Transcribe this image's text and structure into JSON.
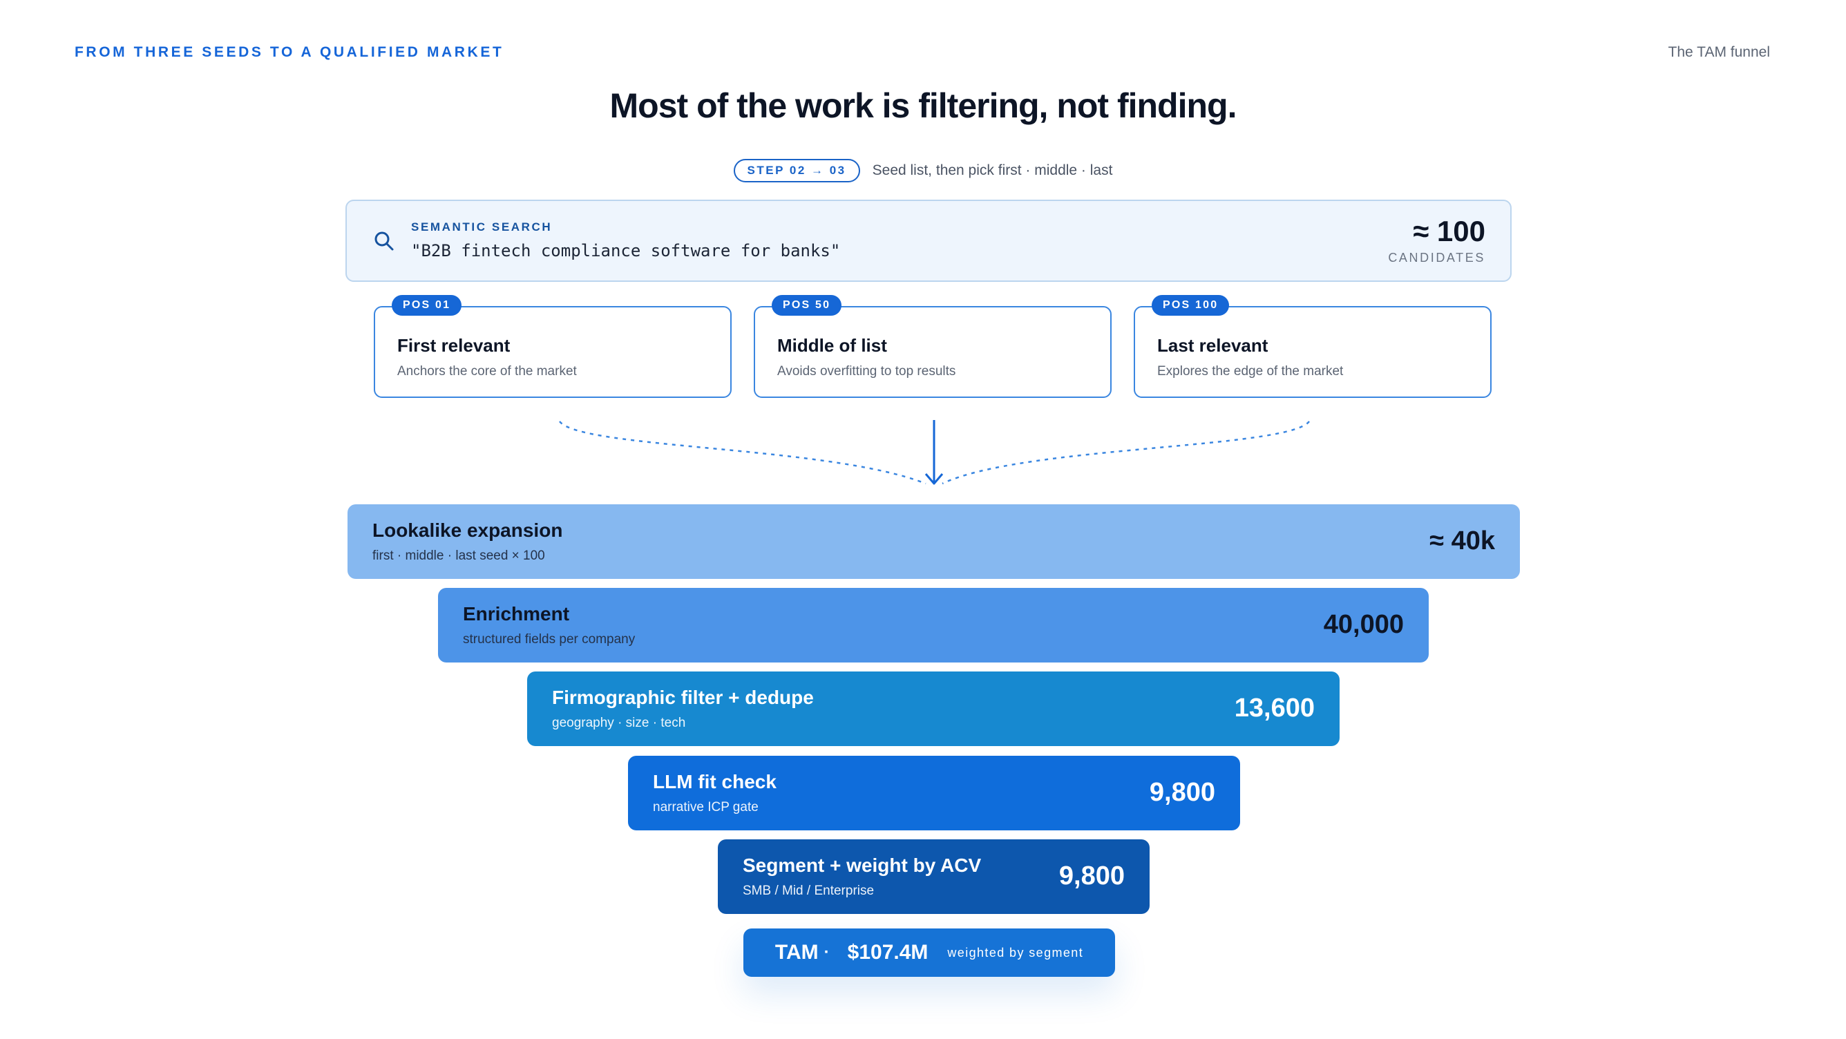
{
  "eyebrow": "FROM THREE SEEDS TO A QUALIFIED MARKET",
  "corner_label": "The TAM funnel",
  "headline": "Most of the work is filtering, not finding.",
  "step": {
    "pill": "STEP 02 → 03",
    "text": "Seed list, then pick first · middle · last"
  },
  "search": {
    "icon": "search-icon",
    "label": "SEMANTIC SEARCH",
    "query": "\"B2B fintech compliance software for banks\"",
    "count": "≈ 100",
    "count_label": "CANDIDATES"
  },
  "seeds": [
    {
      "badge": "POS 01",
      "title": "First relevant",
      "desc": "Anchors the core of the market"
    },
    {
      "badge": "POS 50",
      "title": "Middle of list",
      "desc": "Avoids overfitting to top results"
    },
    {
      "badge": "POS 100",
      "title": "Last relevant",
      "desc": "Explores the edge of the market"
    }
  ],
  "stages": [
    {
      "title": "Lookalike expansion",
      "sub": "first · middle · last seed × 100",
      "value": "≈ 40k",
      "bg": "#86b8f0",
      "fg": "#0d1526"
    },
    {
      "title": "Enrichment",
      "sub": "structured fields per company",
      "value": "40,000",
      "bg": "#4d94e8",
      "fg": "#0d1526"
    },
    {
      "title": "Firmographic filter + dedupe",
      "sub": "geography · size · tech",
      "value": "13,600",
      "bg": "#1789d0",
      "fg": "#ffffff"
    },
    {
      "title": "LLM fit check",
      "sub": "narrative ICP gate",
      "value": "9,800",
      "bg": "#0f6ddb",
      "fg": "#ffffff"
    },
    {
      "title": "Segment + weight by ACV",
      "sub": "SMB / Mid / Enterprise",
      "value": "9,800",
      "bg": "#0d57ad",
      "fg": "#ffffff"
    }
  ],
  "tam": {
    "label": "TAM",
    "dot": "·",
    "value": "$107.4M",
    "note": "weighted by segment"
  }
}
